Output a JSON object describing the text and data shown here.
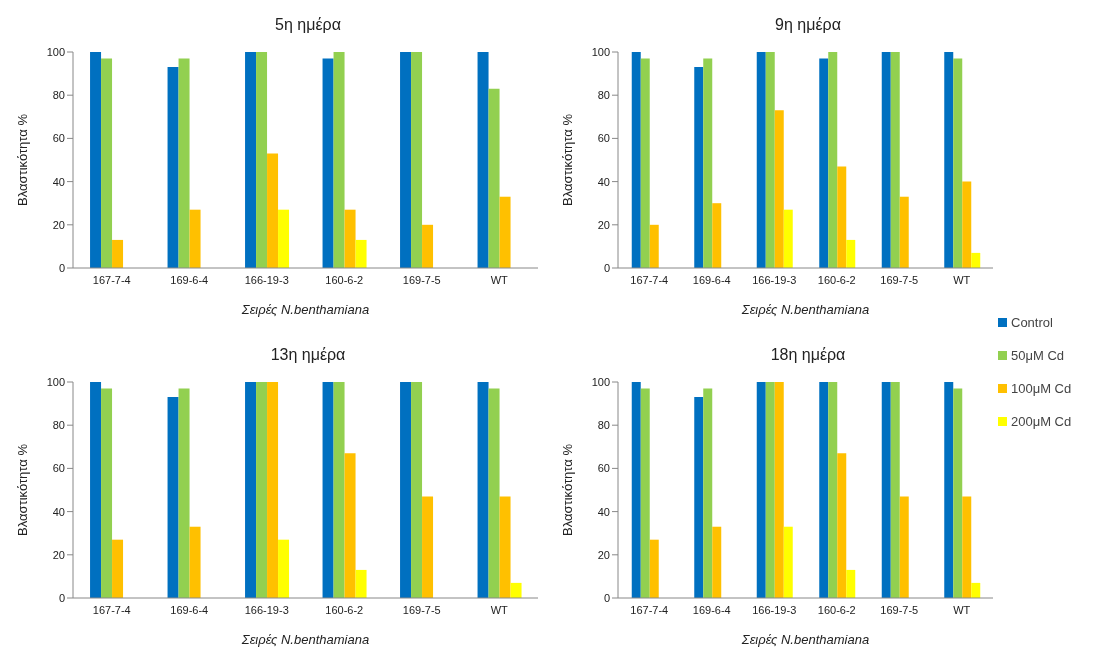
{
  "chart_data": [
    {
      "type": "bar",
      "title": "5η ημέρα",
      "xlabel": "Σειρές N.benthamiana",
      "ylabel": "Βλαστικότητα %",
      "categories": [
        "167-7-4",
        "169-6-4",
        "166-19-3",
        "160-6-2",
        "169-7-5",
        "WT"
      ],
      "ylim": [
        0,
        100
      ],
      "yticks": [
        0,
        20,
        40,
        60,
        80,
        100
      ],
      "series": [
        {
          "color": "#0070c0",
          "values": [
            100,
            93,
            100,
            97,
            100,
            100
          ]
        },
        {
          "color": "#92d050",
          "values": [
            97,
            97,
            100,
            100,
            100,
            83
          ]
        },
        {
          "color": "#ffc000",
          "values": [
            13,
            27,
            53,
            27,
            20,
            33
          ]
        },
        {
          "color": "#ffff00",
          "values": [
            0,
            0,
            27,
            13,
            0,
            0
          ]
        }
      ]
    },
    {
      "type": "bar",
      "title": "9η ημέρα",
      "xlabel": "Σειρές N.benthamiana",
      "ylabel": "Βλαστικότητα %",
      "categories": [
        "167-7-4",
        "169-6-4",
        "166-19-3",
        "160-6-2",
        "169-7-5",
        "WT"
      ],
      "ylim": [
        0,
        100
      ],
      "yticks": [
        0,
        20,
        40,
        60,
        80,
        100
      ],
      "legend": "bottom right",
      "series": [
        {
          "name": "Control",
          "color": "#0070c0",
          "values": [
            100,
            93,
            100,
            97,
            100,
            100
          ]
        },
        {
          "name": "50μM Cd",
          "color": "#92d050",
          "values": [
            97,
            97,
            100,
            100,
            100,
            97
          ]
        },
        {
          "name": "100μM Cd",
          "color": "#ffc000",
          "values": [
            20,
            30,
            73,
            47,
            33,
            40
          ]
        },
        {
          "name": "200μM Cd",
          "color": "#ffff00",
          "values": [
            0,
            0,
            27,
            13,
            0,
            7
          ]
        }
      ]
    },
    {
      "type": "bar",
      "title": "13η ημέρα",
      "xlabel": "Σειρές N.benthamiana",
      "ylabel": "Βλαστικότητα %",
      "categories": [
        "167-7-4",
        "169-6-4",
        "166-19-3",
        "160-6-2",
        "169-7-5",
        "WT"
      ],
      "ylim": [
        0,
        100
      ],
      "yticks": [
        0,
        20,
        40,
        60,
        80,
        100
      ],
      "series": [
        {
          "color": "#0070c0",
          "values": [
            100,
            93,
            100,
            100,
            100,
            100
          ]
        },
        {
          "color": "#92d050",
          "values": [
            97,
            97,
            100,
            100,
            100,
            97
          ]
        },
        {
          "color": "#ffc000",
          "values": [
            27,
            33,
            100,
            67,
            47,
            47
          ]
        },
        {
          "color": "#ffff00",
          "values": [
            0,
            0,
            27,
            13,
            0,
            7
          ]
        }
      ]
    },
    {
      "type": "bar",
      "title": "18η ημέρα",
      "xlabel": "Σειρές N.benthamiana",
      "ylabel": "Βλαστικότητα %",
      "categories": [
        "167-7-4",
        "169-6-4",
        "166-19-3",
        "160-6-2",
        "169-7-5",
        "WT"
      ],
      "ylim": [
        0,
        100
      ],
      "yticks": [
        0,
        20,
        40,
        60,
        80,
        100
      ],
      "series": [
        {
          "color": "#0070c0",
          "values": [
            100,
            93,
            100,
            100,
            100,
            100
          ]
        },
        {
          "color": "#92d050",
          "values": [
            97,
            97,
            100,
            100,
            100,
            97
          ]
        },
        {
          "color": "#ffc000",
          "values": [
            27,
            33,
            100,
            67,
            47,
            47
          ]
        },
        {
          "color": "#ffff00",
          "values": [
            0,
            0,
            33,
            13,
            0,
            7
          ]
        }
      ]
    }
  ]
}
